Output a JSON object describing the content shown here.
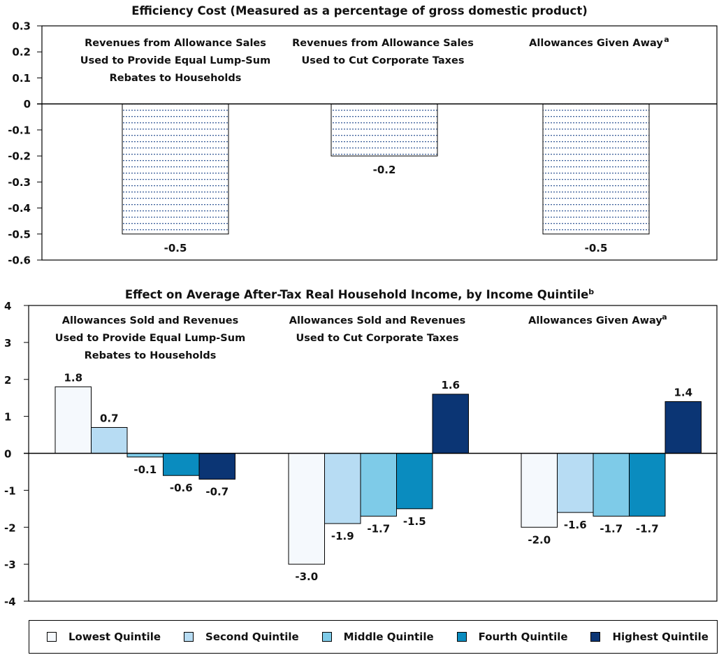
{
  "chart_data": [
    {
      "type": "bar",
      "title": "Efficiency Cost (Measured as a percentage of gross domestic product)",
      "categories": [
        "Revenues from Allowance Sales Used to Provide Equal Lump-Sum Rebates to Households",
        "Revenues from Allowance Sales Used to Cut Corporate Taxes",
        "Allowances Given Away"
      ],
      "category_lines": [
        [
          "Revenues from Allowance Sales",
          "Used to Provide Equal Lump-Sum",
          "Rebates to Households"
        ],
        [
          "Revenues from Allowance Sales",
          "Used to Cut Corporate Taxes"
        ],
        [
          "Allowances Given Away"
        ]
      ],
      "category_footnotes": [
        "",
        "",
        "a"
      ],
      "values": [
        -0.5,
        -0.2,
        -0.5
      ],
      "value_labels": [
        "-0.5",
        "-0.2",
        "-0.5"
      ],
      "ylim": [
        -0.6,
        0.3
      ],
      "yticks": [
        "0.3",
        "0.2",
        "0.1",
        "0",
        "-0.1",
        "-0.2",
        "-0.3",
        "-0.4",
        "-0.5",
        "-0.6"
      ],
      "ytick_values": [
        0.3,
        0.2,
        0.1,
        0,
        -0.1,
        -0.2,
        -0.3,
        -0.4,
        -0.5,
        -0.6
      ],
      "bar_style": "horizontal dotted lines"
    },
    {
      "type": "bar",
      "title": "Effect on Average After-Tax Real Household Income, by Income Quintile",
      "title_footnote": "b",
      "categories": [
        "Allowances Sold and Revenues Used to Provide Equal Lump-Sum Rebates to Households",
        "Allowances Sold and Revenues Used to Cut Corporate Taxes",
        "Allowances Given Away"
      ],
      "category_lines": [
        [
          "Allowances Sold and Revenues",
          "Used to Provide Equal Lump-Sum",
          "Rebates to Households"
        ],
        [
          "Allowances Sold and Revenues",
          "Used to Cut Corporate Taxes"
        ],
        [
          "Allowances Given Away"
        ]
      ],
      "category_footnotes": [
        "",
        "",
        "a"
      ],
      "series": [
        {
          "name": "Lowest Quintile",
          "color": "#f5f9fd",
          "values": [
            1.8,
            -3.0,
            -2.0
          ],
          "labels": [
            "1.8",
            "-3.0",
            "-2.0"
          ]
        },
        {
          "name": "Second Quintile",
          "color": "#b7dcf3",
          "values": [
            0.7,
            -1.9,
            -1.6
          ],
          "labels": [
            "0.7",
            "-1.9",
            "-1.6"
          ]
        },
        {
          "name": "Middle Quintile",
          "color": "#7ecbe8",
          "values": [
            -0.1,
            -1.7,
            -1.7
          ],
          "labels": [
            "-0.1",
            "-1.7",
            "-1.7"
          ]
        },
        {
          "name": "Fourth Quintile",
          "color": "#0a8cbf",
          "values": [
            -0.6,
            -1.5,
            -1.7
          ],
          "labels": [
            "-0.6",
            "-1.5",
            "-1.7"
          ]
        },
        {
          "name": "Highest Quintile",
          "color": "#0b3574",
          "values": [
            -0.7,
            1.6,
            1.4
          ],
          "labels": [
            "-0.7",
            "1.6",
            "1.4"
          ]
        }
      ],
      "ylim": [
        -4,
        4
      ],
      "yticks": [
        "4",
        "3",
        "2",
        "1",
        "0",
        "-1",
        "-2",
        "-3",
        "-4"
      ],
      "ytick_values": [
        4,
        3,
        2,
        1,
        0,
        -1,
        -2,
        -3,
        -4
      ],
      "legend_position": "bottom"
    }
  ]
}
